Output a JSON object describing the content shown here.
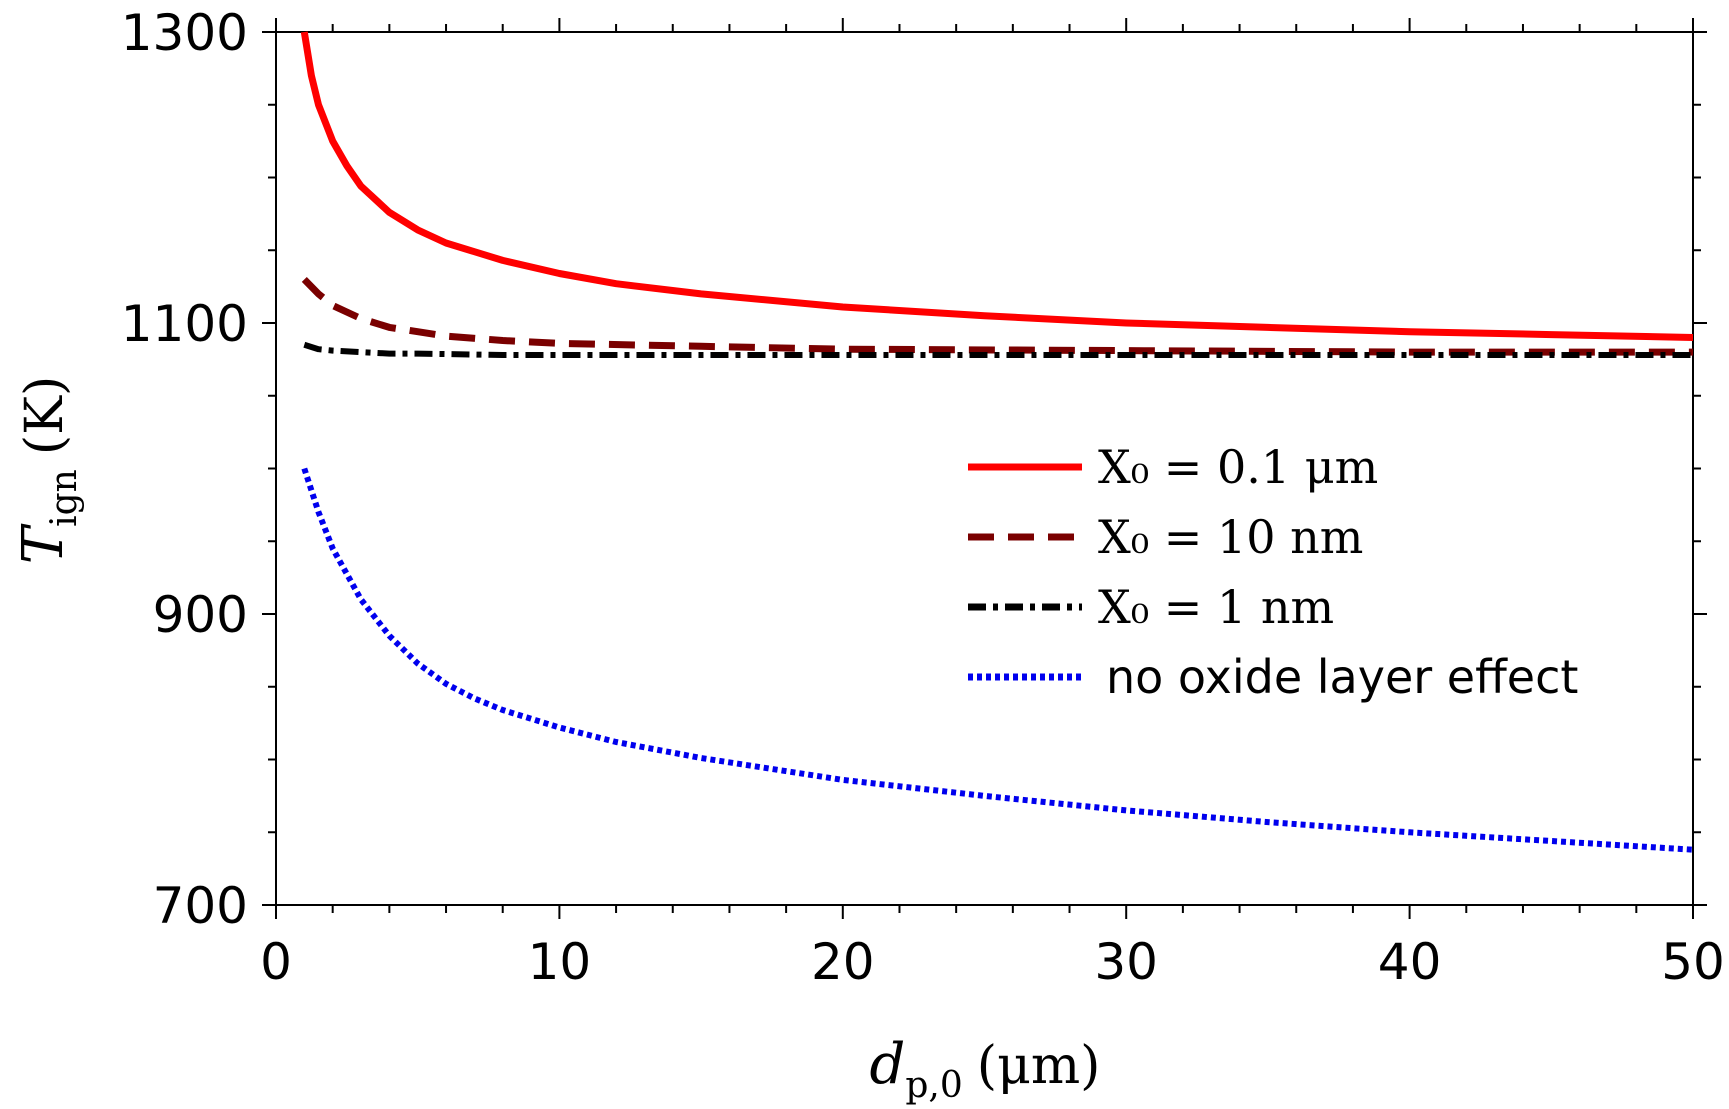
{
  "chart_data": {
    "type": "line",
    "xlabel": "d",
    "xlabel_sub": "p,0",
    "xlabel_unit": "(μm)",
    "ylabel": "T",
    "ylabel_sub": "ign",
    "ylabel_unit": "(K)",
    "xlim": [
      0,
      50
    ],
    "ylim": [
      700,
      1300
    ],
    "xticks": [
      "0",
      "10",
      "20",
      "30",
      "40",
      "50"
    ],
    "yticks": [
      "700",
      "900",
      "1100",
      "1300"
    ],
    "grid": false,
    "legend_position": "right",
    "series": [
      {
        "name": "X₀ = 0.1 μm",
        "color": "#ff0000",
        "style": "solid",
        "x": [
          1,
          1.25,
          1.5,
          2,
          2.5,
          3,
          4,
          5,
          6,
          7,
          8,
          10,
          12,
          15,
          20,
          25,
          30,
          35,
          40,
          45,
          50
        ],
        "y": [
          1300,
          1270,
          1250,
          1225,
          1208,
          1194,
          1176,
          1164,
          1155,
          1149,
          1143,
          1134,
          1127,
          1120,
          1111,
          1105,
          1100,
          1097,
          1094,
          1092,
          1090
        ]
      },
      {
        "name": "X₀ = 10 nm",
        "color": "#7a0000",
        "style": "dashed",
        "x": [
          1,
          1.5,
          2,
          3,
          4,
          5,
          6,
          8,
          10,
          15,
          20,
          30,
          40,
          50
        ],
        "y": [
          1130,
          1120,
          1112,
          1103,
          1097,
          1094,
          1091,
          1088,
          1086,
          1084,
          1082,
          1081,
          1080,
          1080
        ]
      },
      {
        "name": "X₀ = 1 nm",
        "color": "#000000",
        "style": "dashdot",
        "x": [
          1,
          1.5,
          2,
          3,
          4,
          5,
          8,
          10,
          20,
          30,
          40,
          50
        ],
        "y": [
          1085,
          1082,
          1081,
          1080,
          1079,
          1079,
          1078,
          1078,
          1078,
          1078,
          1078,
          1078
        ]
      },
      {
        "name": "no oxide layer effect",
        "color": "#0000ee",
        "style": "dotted",
        "x": [
          1,
          1.5,
          2,
          3,
          4,
          5,
          6,
          7,
          8,
          10,
          12,
          15,
          20,
          25,
          30,
          35,
          40,
          45,
          50
        ],
        "y": [
          1000,
          970,
          945,
          910,
          885,
          866,
          852,
          842,
          834,
          822,
          812,
          801,
          786,
          775,
          765,
          757,
          750,
          744,
          738
        ]
      }
    ]
  }
}
